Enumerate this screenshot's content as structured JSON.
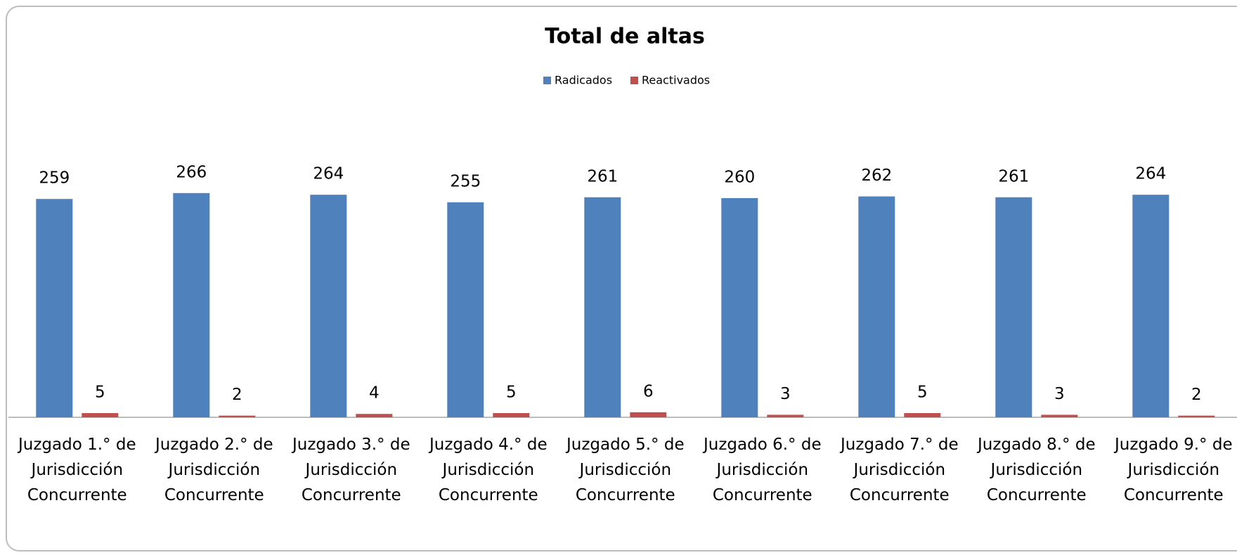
{
  "chart_data": {
    "type": "bar",
    "title": "Total de altas",
    "categories": [
      "Juzgado 1.° de Jurisdicción Concurrente",
      "Juzgado 2.° de Jurisdicción Concurrente",
      "Juzgado 3.° de Jurisdicción Concurrente",
      "Juzgado 4.° de Jurisdicción Concurrente",
      "Juzgado 5.° de Jurisdicción Concurrente",
      "Juzgado 6.° de Jurisdicción Concurrente",
      "Juzgado 7.° de Jurisdicción Concurrente",
      "Juzgado 8.° de Jurisdicción Concurrente",
      "Juzgado 9.° de Jurisdicción Concurrente"
    ],
    "series": [
      {
        "name": "Radicados",
        "color": "#4f81bd",
        "values": [
          259,
          266,
          264,
          255,
          261,
          260,
          262,
          261,
          264
        ]
      },
      {
        "name": "Reactivados",
        "color": "#c0504d",
        "values": [
          5,
          2,
          4,
          5,
          6,
          3,
          5,
          3,
          2
        ]
      }
    ],
    "legend": "top"
  }
}
